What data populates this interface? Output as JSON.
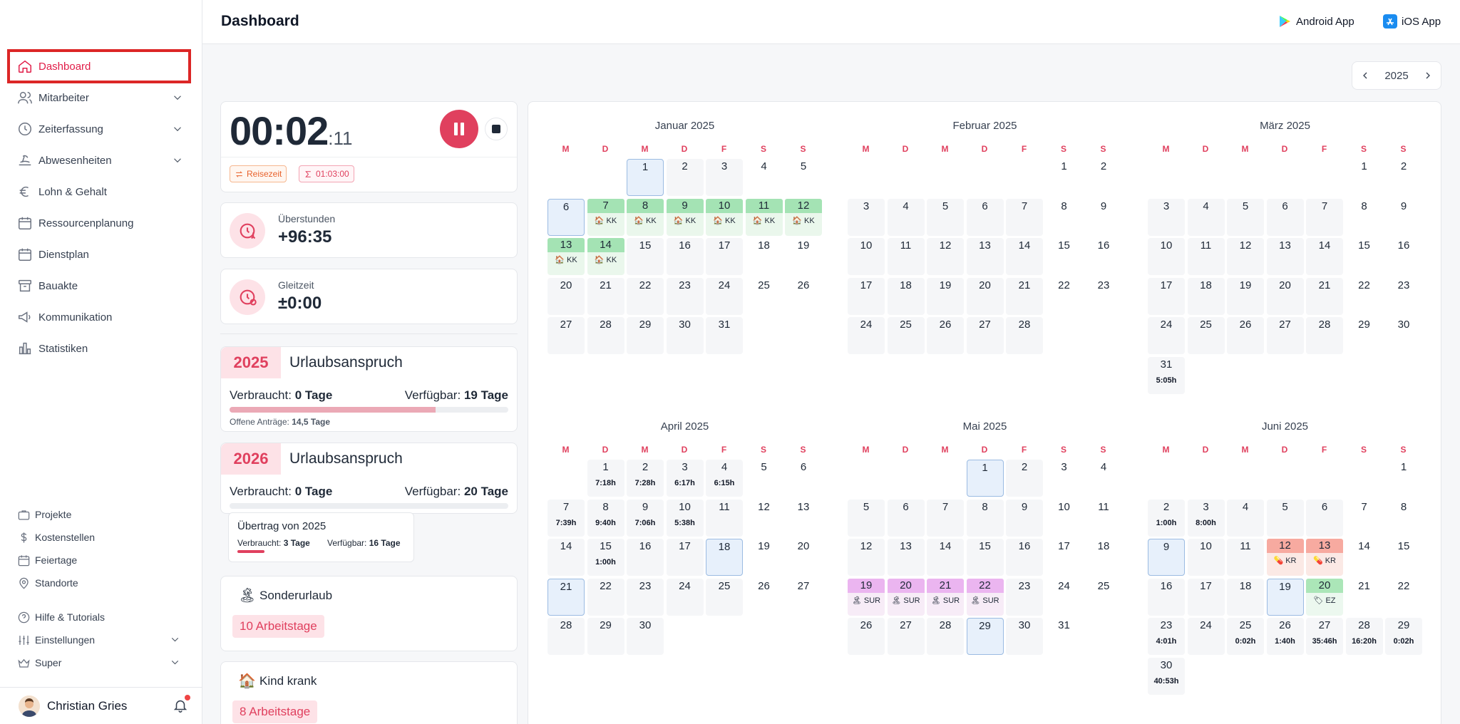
{
  "header": {
    "title": "Dashboard",
    "android_label": "Android App",
    "ios_label": "iOS App"
  },
  "sidebar": {
    "items": [
      {
        "label": "Dashboard",
        "icon": "home-icon",
        "active": true
      },
      {
        "label": "Mitarbeiter",
        "icon": "users-icon",
        "expandable": true
      },
      {
        "label": "Zeiterfassung",
        "icon": "clock-icon",
        "expandable": true
      },
      {
        "label": "Abwesenheiten",
        "icon": "beach-icon",
        "expandable": true
      },
      {
        "label": "Lohn & Gehalt",
        "icon": "euro-icon"
      },
      {
        "label": "Ressourcenplanung",
        "icon": "calendar-icon"
      },
      {
        "label": "Dienstplan",
        "icon": "calendar-icon"
      },
      {
        "label": "Bauakte",
        "icon": "archive-icon"
      },
      {
        "label": "Kommunikation",
        "icon": "megaphone-icon"
      },
      {
        "label": "Statistiken",
        "icon": "chart-icon"
      }
    ],
    "bottom_items": [
      {
        "label": "Projekte",
        "icon": "briefcase-icon"
      },
      {
        "label": "Kostenstellen",
        "icon": "dollar-icon"
      },
      {
        "label": "Feiertage",
        "icon": "calendar-icon"
      },
      {
        "label": "Standorte",
        "icon": "pin-icon"
      },
      {
        "label": "Hilfe & Tutorials",
        "icon": "help-icon"
      },
      {
        "label": "Einstellungen",
        "icon": "sliders-icon",
        "expandable": true
      },
      {
        "label": "Super",
        "icon": "crown-icon",
        "expandable": true
      }
    ],
    "user_name": "Christian Gries"
  },
  "year_nav": {
    "year": "2025"
  },
  "timer": {
    "main": "00:02",
    "seconds": ":11",
    "tag_travel": "Reisezeit",
    "tag_sum": "01:03:00"
  },
  "overtime": {
    "label": "Überstunden",
    "value": "+96:35"
  },
  "flextime": {
    "label": "Gleitzeit",
    "value": "±0:00"
  },
  "vacation_2025": {
    "year": "2025",
    "title": "Urlaubsanspruch",
    "used_label": "Verbraucht:",
    "used_value": "0 Tage",
    "avail_label": "Verfügbar:",
    "avail_value": "19 Tage",
    "progress": 0.74,
    "note_label": "Offene Anträge:",
    "note_value": "14,5 Tage"
  },
  "vacation_2026": {
    "year": "2026",
    "title": "Urlaubsanspruch",
    "used_label": "Verbraucht:",
    "used_value": "0 Tage",
    "avail_label": "Verfügbar:",
    "avail_value": "20 Tage",
    "progress": 0.0
  },
  "carryover": {
    "title": "Übertrag von 2025",
    "used_label": "Verbraucht:",
    "used_value": "3 Tage",
    "avail_label": "Verfügbar:",
    "avail_value": "16 Tage",
    "progress": 0.16
  },
  "special_leave": {
    "title": "Sonderurlaub",
    "badge": "10 Arbeitstage",
    "icon": "palm-icon"
  },
  "sick_child": {
    "title": "Kind krank",
    "badge": "8 Arbeitstage",
    "icon": "house-icon"
  },
  "calendar": {
    "weekdays": [
      "M",
      "D",
      "M",
      "D",
      "F",
      "S",
      "S"
    ],
    "months": [
      {
        "name": "Januar 2025",
        "days": 31,
        "offset": 2,
        "today": [
          1,
          6
        ],
        "special": {
          "7": [
            "green",
            "🏠",
            "KK"
          ],
          "8": [
            "green",
            "🏠",
            "KK"
          ],
          "9": [
            "green",
            "🏠",
            "KK"
          ],
          "10": [
            "green",
            "🏠",
            "KK"
          ],
          "11": [
            "green",
            "🏠",
            "KK"
          ],
          "12": [
            "green",
            "🏠",
            "KK"
          ],
          "13": [
            "green",
            "🏠",
            "KK"
          ],
          "14": [
            "green",
            "🏠",
            "KK"
          ]
        },
        "hours": {}
      },
      {
        "name": "Februar 2025",
        "days": 28,
        "offset": 5,
        "today": [],
        "special": {},
        "hours": {}
      },
      {
        "name": "März 2025",
        "days": 31,
        "offset": 5,
        "today": [],
        "special": {},
        "hours": {
          "31": "5:05h"
        }
      },
      {
        "name": "April 2025",
        "days": 30,
        "offset": 1,
        "today": [
          18,
          21
        ],
        "special": {},
        "hours": {
          "1": "7:18h",
          "2": "7:28h",
          "3": "6:17h",
          "4": "6:15h",
          "7": "7:39h",
          "8": "9:40h",
          "9": "7:06h",
          "10": "5:38h",
          "15": "1:00h"
        }
      },
      {
        "name": "Mai 2025",
        "days": 31,
        "offset": 3,
        "today": [
          1,
          29
        ],
        "special": {
          "19": [
            "purple",
            "🏝",
            "SUR"
          ],
          "20": [
            "purple",
            "🏝",
            "SUR"
          ],
          "21": [
            "purple",
            "🏝",
            "SUR"
          ],
          "22": [
            "purple",
            "🏝",
            "SUR"
          ]
        },
        "hours": {}
      },
      {
        "name": "Juni 2025",
        "days": 30,
        "offset": 6,
        "today": [
          9,
          19
        ],
        "special": {
          "12": [
            "red",
            "💊",
            "KR"
          ],
          "13": [
            "red",
            "💊",
            "KR"
          ],
          "20": [
            "lgreen",
            "🏷",
            "EZ"
          ]
        },
        "hours": {
          "2": "1:00h",
          "3": "8:00h",
          "23": "4:01h",
          "25": "0:02h",
          "26": "1:40h",
          "27": "35:46h",
          "28": "16:20h",
          "29": "0:02h",
          "30": "40:53h"
        }
      }
    ]
  },
  "colors": {
    "accent": "#e0405e",
    "accent_light": "#fde2e7",
    "active_frame": "#dc2626",
    "sick_child_green": "#a4e3b4",
    "special_leave_purple": "#ebb5f0",
    "sick_red": "#f7aaa0"
  }
}
